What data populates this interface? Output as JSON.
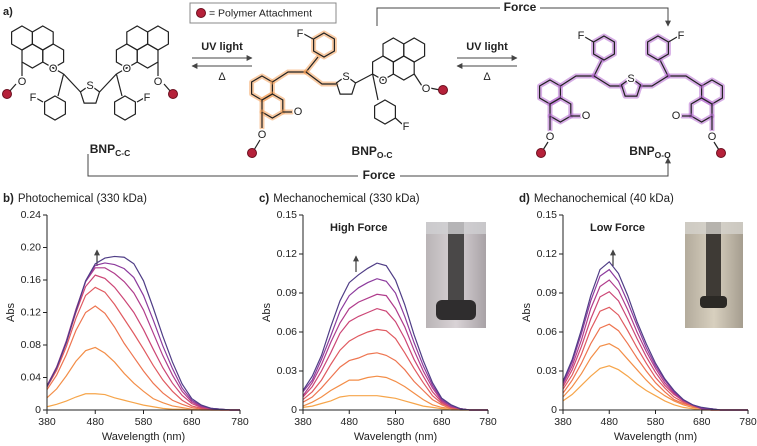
{
  "scheme": {
    "panel": "a)",
    "legend": "= Polymer Attachment",
    "uv_left": "UV light",
    "delta_left": "Δ",
    "uv_right": "UV light",
    "delta_right": "Δ",
    "force_top": "Force",
    "force_bottom": "Force",
    "molecules": [
      {
        "name": "BNP",
        "sub": "C-C",
        "atoms": [
          "O",
          "O",
          "S",
          "O",
          "O",
          "F",
          "F"
        ]
      },
      {
        "name": "BNP",
        "sub": "O-C",
        "atoms": [
          "O",
          "O",
          "F",
          "S",
          "O",
          "O",
          "F"
        ]
      },
      {
        "name": "BNP",
        "sub": "O-O",
        "atoms": [
          "O",
          "O",
          "F",
          "S",
          "F",
          "O",
          "O"
        ]
      }
    ]
  },
  "chart_data": [
    {
      "type": "line",
      "panel": "b)",
      "title": "Photochemical (330 kDa)",
      "xlabel": "Wavelength (nm)",
      "ylabel": "Abs",
      "x": [
        380,
        400,
        420,
        440,
        460,
        480,
        500,
        520,
        540,
        560,
        580,
        600,
        620,
        640,
        660,
        680,
        700,
        720,
        740,
        760,
        780
      ],
      "xlim": [
        380,
        780
      ],
      "xticks": [
        380,
        480,
        580,
        680,
        780
      ],
      "ylim": [
        0,
        0.24
      ],
      "yticks": [
        0,
        0.04,
        0.08,
        0.12,
        0.16,
        {
          "value": 0.2,
          "label": "0.20"
        },
        0.24
      ],
      "series": [
        {
          "color": "#f6a54a",
          "values": [
            0.004,
            0.007,
            0.011,
            0.016,
            0.02,
            0.02,
            0.019,
            0.015,
            0.012,
            0.009,
            0.006,
            0.004,
            0.002,
            0.001,
            0.001,
            0,
            0,
            0,
            0,
            0,
            0
          ]
        },
        {
          "color": "#f38e48",
          "values": [
            0.015,
            0.026,
            0.042,
            0.06,
            0.073,
            0.077,
            0.07,
            0.059,
            0.045,
            0.033,
            0.023,
            0.014,
            0.009,
            0.005,
            0.003,
            0.001,
            0,
            0,
            0,
            0,
            0
          ]
        },
        {
          "color": "#ee7550",
          "values": [
            0.025,
            0.043,
            0.068,
            0.098,
            0.12,
            0.128,
            0.119,
            0.102,
            0.082,
            0.065,
            0.048,
            0.033,
            0.021,
            0.012,
            0.007,
            0.003,
            0.001,
            0,
            0,
            0,
            0
          ]
        },
        {
          "color": "#e05a60",
          "values": [
            0.028,
            0.049,
            0.078,
            0.113,
            0.141,
            0.151,
            0.145,
            0.13,
            0.112,
            0.094,
            0.075,
            0.055,
            0.037,
            0.023,
            0.012,
            0.005,
            0.002,
            0.001,
            0,
            0,
            0
          ]
        },
        {
          "color": "#cc4676",
          "values": [
            0.03,
            0.052,
            0.083,
            0.12,
            0.152,
            0.166,
            0.162,
            0.151,
            0.136,
            0.12,
            0.099,
            0.075,
            0.052,
            0.033,
            0.018,
            0.008,
            0.003,
            0.001,
            0,
            0,
            0
          ]
        },
        {
          "color": "#b03c8c",
          "values": [
            0.03,
            0.053,
            0.085,
            0.124,
            0.158,
            0.175,
            0.175,
            0.168,
            0.158,
            0.144,
            0.123,
            0.095,
            0.067,
            0.043,
            0.023,
            0.01,
            0.004,
            0.002,
            0.001,
            0,
            0
          ]
        },
        {
          "color": "#8c3b9d",
          "values": [
            0.029,
            0.052,
            0.084,
            0.123,
            0.158,
            0.178,
            0.181,
            0.179,
            0.174,
            0.163,
            0.141,
            0.111,
            0.079,
            0.051,
            0.027,
            0.012,
            0.005,
            0.002,
            0.001,
            0,
            0
          ]
        },
        {
          "color": "#4f3d86",
          "values": [
            0.029,
            0.052,
            0.083,
            0.122,
            0.159,
            0.18,
            0.187,
            0.189,
            0.188,
            0.18,
            0.159,
            0.126,
            0.091,
            0.059,
            0.032,
            0.014,
            0.006,
            0.002,
            0.001,
            0,
            0
          ]
        }
      ]
    },
    {
      "type": "line",
      "panel": "c)",
      "title": "Mechanochemical (330 kDa)",
      "xlabel": "Wavelength (nm)",
      "ylabel": "Abs",
      "annotation": "High Force",
      "x": [
        380,
        400,
        420,
        440,
        460,
        480,
        500,
        520,
        540,
        560,
        580,
        600,
        620,
        640,
        660,
        680,
        700,
        720,
        740,
        760,
        780
      ],
      "xlim": [
        380,
        780
      ],
      "xticks": [
        380,
        480,
        580,
        680,
        780
      ],
      "ylim": [
        0,
        0.15
      ],
      "yticks": [
        0,
        0.03,
        0.06,
        0.09,
        0.12,
        0.15
      ],
      "series": [
        {
          "color": "#f6a54a",
          "values": [
            0.002,
            0.003,
            0.005,
            0.007,
            0.01,
            0.011,
            0.011,
            0.011,
            0.011,
            0.01,
            0.009,
            0.007,
            0.005,
            0.003,
            0.002,
            0.001,
            0,
            0,
            0,
            0,
            0
          ]
        },
        {
          "color": "#f38e48",
          "values": [
            0.003,
            0.006,
            0.01,
            0.015,
            0.019,
            0.023,
            0.023,
            0.025,
            0.026,
            0.025,
            0.022,
            0.018,
            0.013,
            0.008,
            0.004,
            0.002,
            0.001,
            0,
            0,
            0,
            0
          ]
        },
        {
          "color": "#ee7550",
          "values": [
            0.006,
            0.01,
            0.017,
            0.025,
            0.033,
            0.038,
            0.04,
            0.043,
            0.044,
            0.042,
            0.038,
            0.031,
            0.022,
            0.015,
            0.008,
            0.004,
            0.001,
            0.001,
            0,
            0,
            0
          ]
        },
        {
          "color": "#e05a60",
          "values": [
            0.008,
            0.014,
            0.023,
            0.035,
            0.046,
            0.053,
            0.057,
            0.06,
            0.062,
            0.061,
            0.055,
            0.044,
            0.032,
            0.021,
            0.011,
            0.005,
            0.002,
            0.001,
            0,
            0,
            0
          ]
        },
        {
          "color": "#cc4676",
          "values": [
            0.01,
            0.018,
            0.03,
            0.044,
            0.059,
            0.068,
            0.072,
            0.075,
            0.078,
            0.076,
            0.068,
            0.055,
            0.039,
            0.026,
            0.014,
            0.006,
            0.002,
            0.001,
            0,
            0,
            0
          ]
        },
        {
          "color": "#b03c8c",
          "values": [
            0.011,
            0.021,
            0.035,
            0.052,
            0.067,
            0.078,
            0.083,
            0.086,
            0.089,
            0.088,
            0.078,
            0.064,
            0.046,
            0.03,
            0.017,
            0.007,
            0.003,
            0.001,
            0,
            0,
            0
          ]
        },
        {
          "color": "#8c3b9d",
          "values": [
            0.014,
            0.023,
            0.039,
            0.057,
            0.076,
            0.088,
            0.094,
            0.098,
            0.101,
            0.099,
            0.09,
            0.072,
            0.052,
            0.034,
            0.019,
            0.008,
            0.003,
            0.001,
            0,
            0,
            0
          ]
        },
        {
          "color": "#4f3d86",
          "values": [
            0.015,
            0.026,
            0.042,
            0.064,
            0.084,
            0.098,
            0.104,
            0.109,
            0.113,
            0.111,
            0.1,
            0.081,
            0.058,
            0.038,
            0.021,
            0.009,
            0.004,
            0.001,
            0,
            0,
            0
          ]
        }
      ]
    },
    {
      "type": "line",
      "panel": "d)",
      "title": "Mechanochemical (40 kDa)",
      "xlabel": "Wavelength (nm)",
      "ylabel": "Abs",
      "annotation": "Low Force",
      "x": [
        380,
        400,
        420,
        440,
        460,
        480,
        500,
        520,
        540,
        560,
        580,
        600,
        620,
        640,
        660,
        680,
        700,
        720,
        740,
        760,
        780
      ],
      "xlim": [
        380,
        780
      ],
      "xticks": [
        380,
        480,
        580,
        680,
        780
      ],
      "ylim": [
        0,
        0.15
      ],
      "yticks": [
        0,
        0.03,
        0.06,
        0.09,
        0.12,
        0.15
      ],
      "series": [
        {
          "color": "#f6a54a",
          "values": [
            0.007,
            0.012,
            0.019,
            0.026,
            0.032,
            0.034,
            0.031,
            0.026,
            0.02,
            0.015,
            0.011,
            0.007,
            0.004,
            0.002,
            0.001,
            0,
            0,
            0,
            0,
            0,
            0
          ]
        },
        {
          "color": "#f38e48",
          "values": [
            0.01,
            0.018,
            0.028,
            0.04,
            0.049,
            0.051,
            0.047,
            0.039,
            0.031,
            0.023,
            0.016,
            0.011,
            0.007,
            0.004,
            0.002,
            0.001,
            0,
            0,
            0,
            0,
            0
          ]
        },
        {
          "color": "#ee7550",
          "values": [
            0.013,
            0.023,
            0.036,
            0.051,
            0.063,
            0.066,
            0.061,
            0.051,
            0.04,
            0.03,
            0.021,
            0.014,
            0.008,
            0.005,
            0.003,
            0.001,
            0,
            0,
            0,
            0,
            0
          ]
        },
        {
          "color": "#e05a60",
          "values": [
            0.016,
            0.027,
            0.043,
            0.062,
            0.076,
            0.079,
            0.073,
            0.061,
            0.048,
            0.036,
            0.025,
            0.017,
            0.01,
            0.006,
            0.003,
            0.001,
            0,
            0,
            0,
            0,
            0
          ]
        },
        {
          "color": "#cc4676",
          "values": [
            0.018,
            0.031,
            0.049,
            0.07,
            0.087,
            0.091,
            0.084,
            0.07,
            0.055,
            0.041,
            0.029,
            0.019,
            0.012,
            0.007,
            0.004,
            0.001,
            0,
            0,
            0,
            0,
            0
          ]
        },
        {
          "color": "#b03c8c",
          "values": [
            0.02,
            0.034,
            0.054,
            0.078,
            0.095,
            0.1,
            0.092,
            0.077,
            0.06,
            0.045,
            0.032,
            0.021,
            0.013,
            0.007,
            0.004,
            0.001,
            0.001,
            0,
            0,
            0,
            0
          ]
        },
        {
          "color": "#8c3b9d",
          "values": [
            0.021,
            0.037,
            0.059,
            0.084,
            0.103,
            0.108,
            0.099,
            0.083,
            0.065,
            0.048,
            0.034,
            0.023,
            0.014,
            0.008,
            0.004,
            0.001,
            0.001,
            0,
            0,
            0,
            0
          ]
        },
        {
          "color": "#4f3d86",
          "values": [
            0.022,
            0.039,
            0.062,
            0.088,
            0.108,
            0.114,
            0.105,
            0.088,
            0.068,
            0.051,
            0.036,
            0.024,
            0.015,
            0.008,
            0.004,
            0.002,
            0.001,
            0,
            0,
            0,
            0
          ]
        }
      ]
    }
  ]
}
